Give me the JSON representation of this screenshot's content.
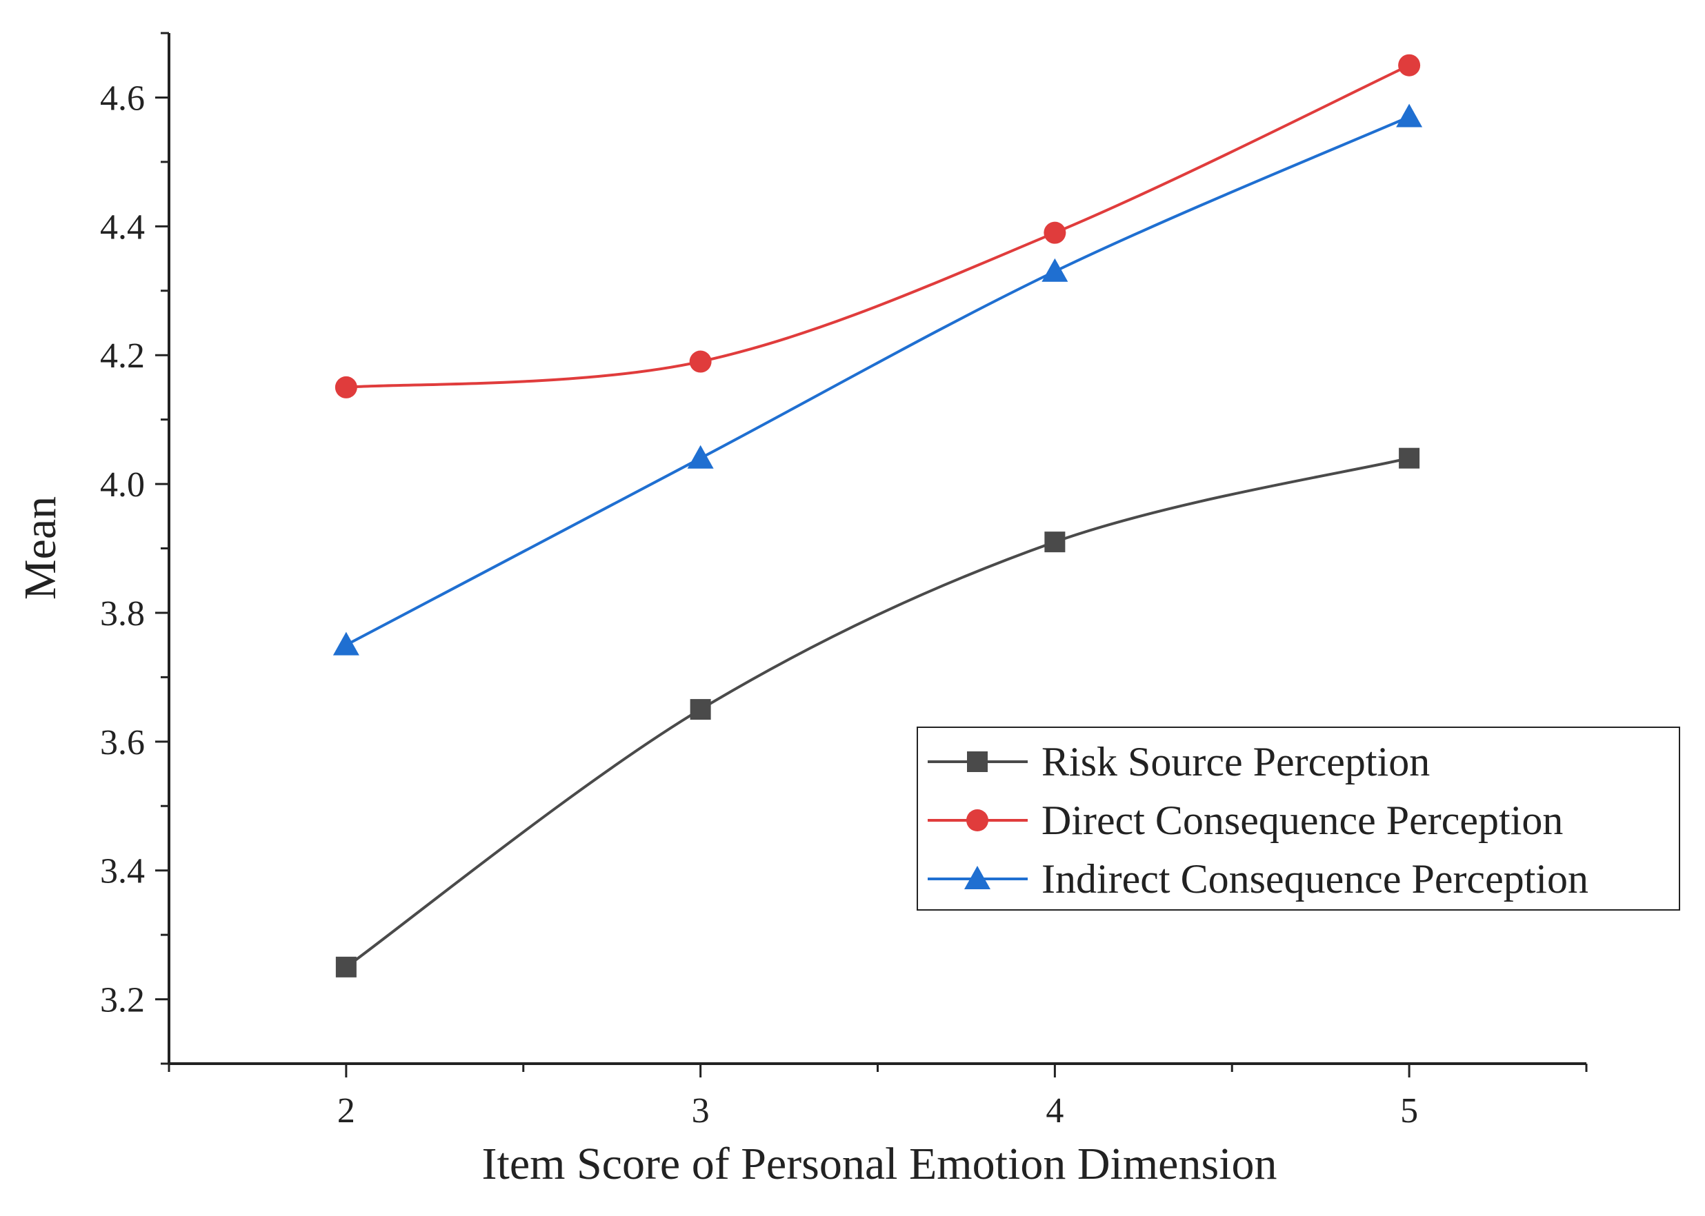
{
  "chart_data": {
    "type": "line",
    "title": "",
    "xlabel": "Item Score of Personal Emotion Dimension",
    "ylabel": "Mean",
    "x": [
      2,
      3,
      4,
      5
    ],
    "xlim": [
      1.5,
      5.5
    ],
    "ylim": [
      3.1,
      4.7
    ],
    "xticks": [
      "2",
      "3",
      "4",
      "5"
    ],
    "yticks": [
      "3.2",
      "3.4",
      "3.6",
      "3.8",
      "4.0",
      "4.2",
      "4.4",
      "4.6"
    ],
    "grid": false,
    "legend_position": "bottom-right",
    "series": [
      {
        "name": "Risk Source Perception",
        "color": "#4a4a4a",
        "marker": "square",
        "values": [
          3.25,
          3.65,
          3.91,
          4.04
        ]
      },
      {
        "name": "Direct Consequence Perception",
        "color": "#e03c3c",
        "marker": "circle",
        "values": [
          4.15,
          4.19,
          4.39,
          4.65
        ]
      },
      {
        "name": "Indirect Consequence Perception",
        "color": "#1f6fd1",
        "marker": "triangle",
        "values": [
          3.75,
          4.04,
          4.33,
          4.57
        ]
      }
    ]
  }
}
